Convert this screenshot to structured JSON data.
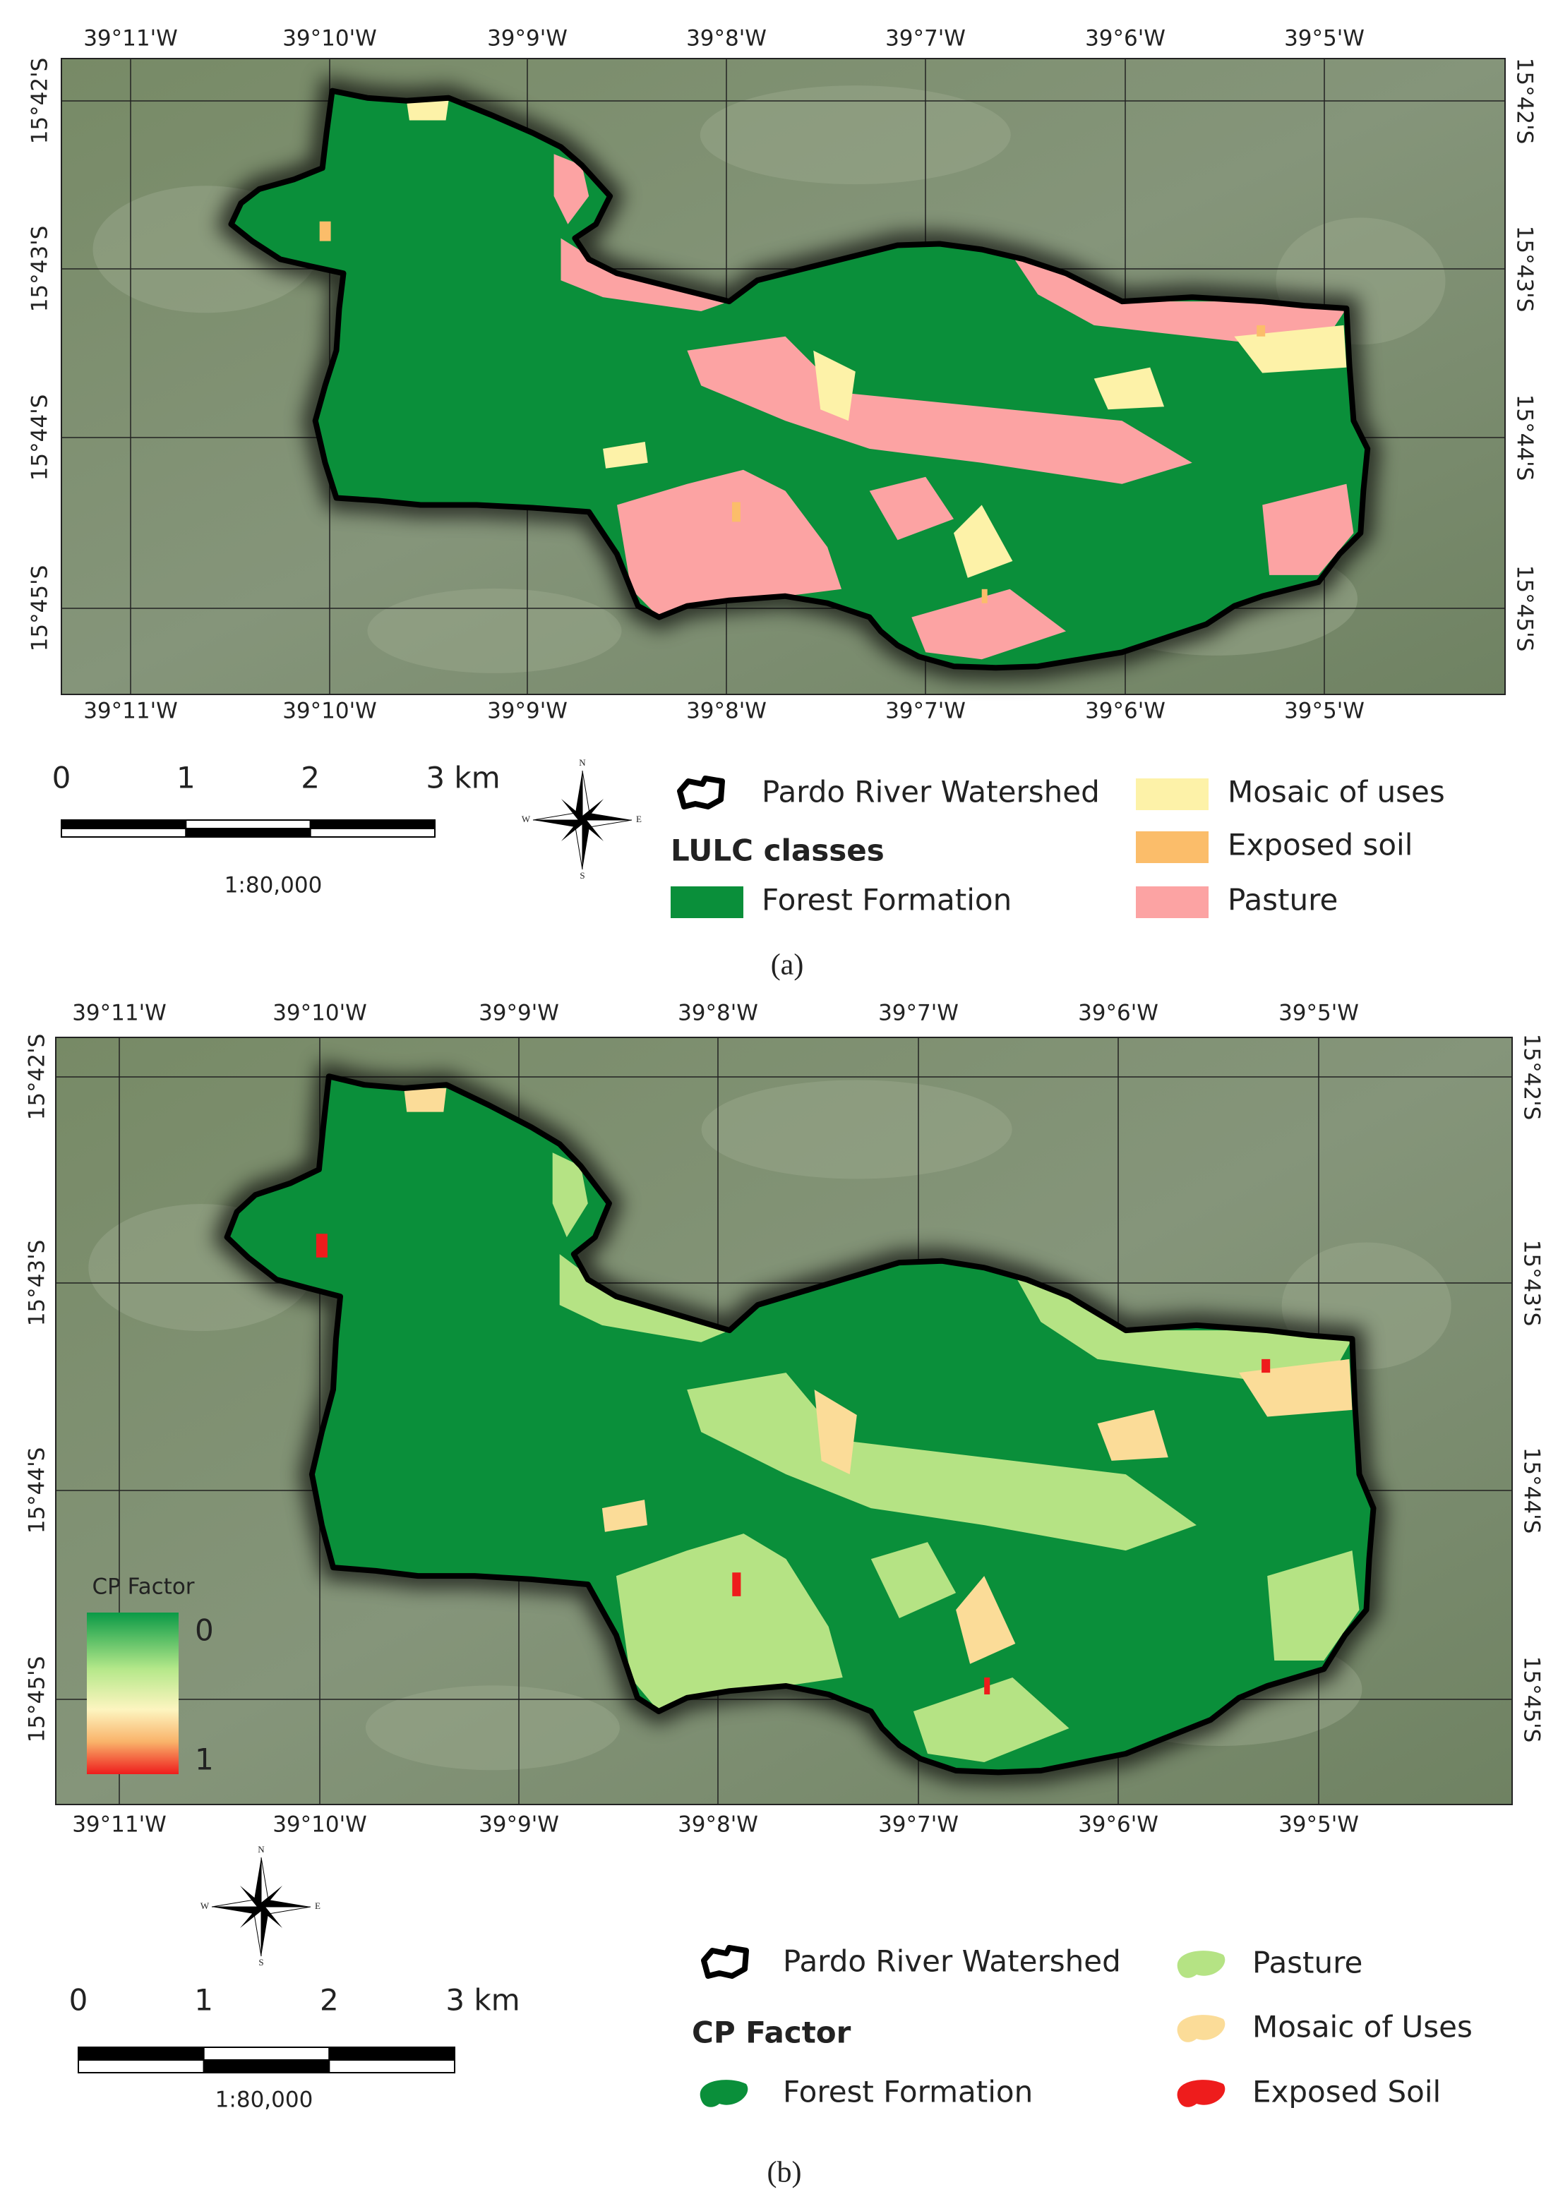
{
  "panels": [
    {
      "lon_labels": [
        "39°11'W",
        "39°10'W",
        "39°9'W",
        "39°8'W",
        "39°7'W",
        "39°6'W",
        "39°5'W"
      ],
      "lat_labels": [
        "15°42'S",
        "15°43'S",
        "15°44'S",
        "15°45'S"
      ],
      "scale": {
        "labels": [
          "0",
          "1",
          "2",
          "3 km"
        ],
        "ratio": "1:80,000"
      },
      "compass": {
        "n": "N",
        "s": "S",
        "e": "E",
        "w": "W"
      },
      "legend": {
        "watershed": "Pardo River Watershed",
        "heading": "LULC classes",
        "items": [
          {
            "name": "Forest Formation",
            "color": "#0a8f3a"
          },
          {
            "name": "Mosaic of uses",
            "color": "#fdf2a8"
          },
          {
            "name": "Exposed soil",
            "color": "#fbbd6a"
          },
          {
            "name": "Pasture",
            "color": "#fca3a3"
          }
        ]
      },
      "caption": "(a)"
    },
    {
      "lon_labels": [
        "39°11'W",
        "39°10'W",
        "39°9'W",
        "39°8'W",
        "39°7'W",
        "39°6'W",
        "39°5'W"
      ],
      "lat_labels": [
        "15°42'S",
        "15°43'S",
        "15°44'S",
        "15°45'S"
      ],
      "colorbar": {
        "title": "CP Factor",
        "labels": [
          "0",
          "1"
        ]
      },
      "scale": {
        "labels": [
          "0",
          "1",
          "2",
          "3 km"
        ],
        "ratio": "1:80,000"
      },
      "compass": {
        "n": "N",
        "s": "S",
        "e": "E",
        "w": "W"
      },
      "legend": {
        "watershed": "Pardo River Watershed",
        "heading": "CP Factor",
        "items": [
          {
            "name": "Forest Formation",
            "color": "#0a8f3a"
          },
          {
            "name": "Pasture",
            "color": "#b5e384"
          },
          {
            "name": "Mosaic of Uses",
            "color": "#fbdc98"
          },
          {
            "name": "Exposed Soil",
            "color": "#ee1c1c"
          }
        ]
      },
      "caption": "(b)"
    }
  ]
}
